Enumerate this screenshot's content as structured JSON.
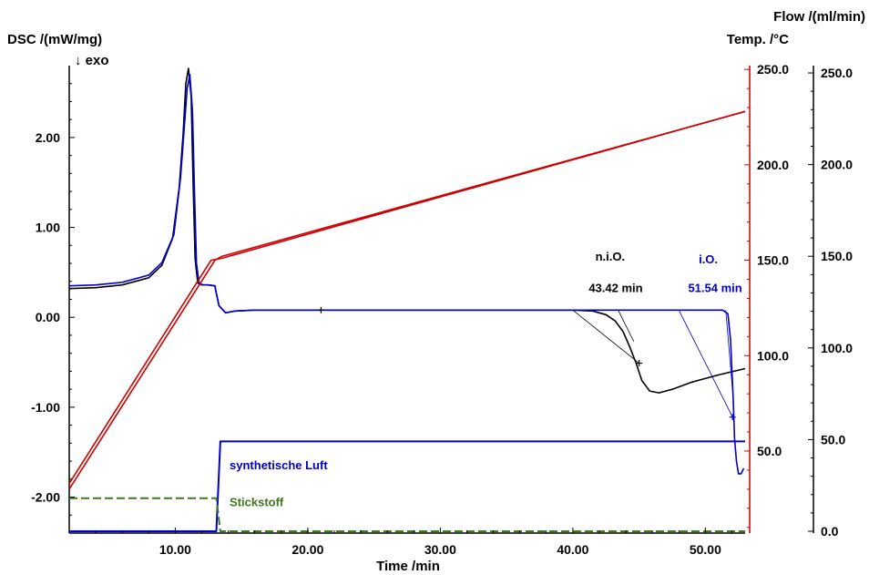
{
  "chart_data": {
    "type": "line",
    "xlabel": "Time /min",
    "xlim": [
      2,
      53
    ],
    "x_ticks": [
      "10.00",
      "20.00",
      "30.00",
      "40.00",
      "50.00"
    ],
    "left_axis": {
      "label": "DSC /(mW/mg)",
      "sublabel": "↓ exo",
      "ylim": [
        -2.4,
        2.8
      ],
      "ticks": [
        "2.00",
        "1.00",
        "0.00",
        "-1.00",
        "-2.00"
      ]
    },
    "temp_axis": {
      "label": "Temp. /°C",
      "color": "#cc0000",
      "ylim": [
        7,
        252
      ],
      "ticks": [
        "250.0",
        "200.0",
        "150.0",
        "100.0",
        "50.0"
      ]
    },
    "flow_axis": {
      "label": "Flow /(ml/min)",
      "ylim": [
        -1,
        254
      ],
      "ticks": [
        "250.0",
        "200.0",
        "150.0",
        "100.0",
        "50.0",
        "0.0"
      ]
    },
    "series": [
      {
        "axis": "dsc",
        "color": "#000000",
        "x": [
          2,
          4,
          6,
          8,
          9,
          9.8,
          10.3,
          10.6,
          10.8,
          11.0,
          11.2,
          11.35,
          11.5,
          11.7,
          12.0,
          12.5,
          13.0,
          13.05,
          13.3,
          13.8,
          14.5,
          16,
          21,
          30,
          40,
          41.5,
          42.5,
          43.2,
          43.8,
          44.3,
          44.8,
          45.2,
          45.8,
          46.5,
          47.5,
          49,
          51,
          53
        ],
        "y": [
          0.32,
          0.33,
          0.36,
          0.44,
          0.58,
          0.88,
          1.45,
          2.05,
          2.6,
          2.77,
          2.45,
          1.5,
          0.65,
          0.38,
          0.36,
          0.36,
          0.35,
          0.3,
          0.13,
          0.05,
          0.07,
          0.08,
          0.08,
          0.08,
          0.08,
          0.07,
          0.03,
          -0.04,
          -0.16,
          -0.33,
          -0.52,
          -0.7,
          -0.82,
          -0.84,
          -0.8,
          -0.72,
          -0.64,
          -0.57
        ]
      },
      {
        "axis": "dsc",
        "color": "#0000cc",
        "x": [
          2,
          4,
          6,
          8,
          9,
          9.9,
          10.4,
          10.7,
          10.9,
          11.1,
          11.3,
          11.45,
          11.6,
          11.8,
          12.1,
          12.5,
          13.0,
          13.05,
          13.3,
          13.8,
          14.5,
          16,
          21,
          30,
          40,
          48,
          50,
          51.3,
          51.7,
          51.9,
          52.1,
          52.2,
          52.35,
          52.5,
          52.7,
          52.9
        ],
        "y": [
          0.35,
          0.36,
          0.39,
          0.47,
          0.61,
          0.92,
          1.55,
          2.15,
          2.55,
          2.7,
          2.3,
          1.4,
          0.6,
          0.38,
          0.36,
          0.36,
          0.35,
          0.3,
          0.13,
          0.05,
          0.07,
          0.08,
          0.08,
          0.08,
          0.08,
          0.08,
          0.08,
          0.08,
          0.04,
          -0.25,
          -0.9,
          -1.35,
          -1.6,
          -1.74,
          -1.74,
          -1.68
        ]
      },
      {
        "axis": "temp",
        "color": "#cc0000",
        "x": [
          2,
          13,
          13.5,
          53
        ],
        "y": [
          30,
          150,
          152,
          228
        ]
      },
      {
        "axis": "temp",
        "color": "#cc0000",
        "x": [
          2,
          12.7,
          13.5,
          53
        ],
        "y": [
          33,
          150,
          151,
          228
        ]
      },
      {
        "name": "synthetische Luft",
        "axis": "flow",
        "color": "#0000cc",
        "x": [
          2,
          13.1,
          13.4,
          53
        ],
        "y": [
          0,
          0,
          49,
          49
        ]
      },
      {
        "name": "Stickstoff",
        "axis": "flow",
        "color": "#3d7a1a",
        "dashed": true,
        "x": [
          2,
          13.1,
          13.4,
          53
        ],
        "y": [
          18,
          18,
          0,
          0
        ]
      }
    ],
    "tangents": [
      {
        "color": "#000000",
        "x": [
          40,
          45
        ],
        "y": [
          0.08,
          -0.51
        ]
      },
      {
        "color": "#000000",
        "x": [
          43.42,
          44.6
        ],
        "y": [
          0.08,
          -0.27
        ]
      },
      {
        "color": "#0000cc",
        "x": [
          48,
          52.05
        ],
        "y": [
          0.08,
          -1.11
        ]
      },
      {
        "color": "#0000cc",
        "x": [
          51.54,
          52.1
        ],
        "y": [
          0.08,
          -0.9
        ]
      }
    ],
    "markers": [
      {
        "color": "#000000",
        "x": 21,
        "y": 0.08
      },
      {
        "color": "#000000",
        "x": 45,
        "y": -0.51
      },
      {
        "color": "#0000cc",
        "x": 52.05,
        "y": -1.11
      }
    ],
    "annotations": [
      {
        "id": "nio-label",
        "text": "n.i.O.",
        "color": "#000000",
        "x": 41.7,
        "y": 0.63
      },
      {
        "id": "nio-time",
        "text": "43.42 min",
        "color": "#000000",
        "x": 41.2,
        "y": 0.28
      },
      {
        "id": "io-label",
        "text": "i.O.",
        "color": "#0000cc",
        "x": 49.5,
        "y": 0.6
      },
      {
        "id": "io-time",
        "text": "51.54 min",
        "color": "#0000cc",
        "x": 48.7,
        "y": 0.28
      },
      {
        "id": "luft-label",
        "text": "synthetische Luft",
        "color": "#0000cc",
        "x": 14.1,
        "y": -1.69
      },
      {
        "id": "stickstoff-label",
        "text": "Stickstoff",
        "color": "#3d7a1a",
        "x": 14.1,
        "y": -2.1
      }
    ]
  }
}
